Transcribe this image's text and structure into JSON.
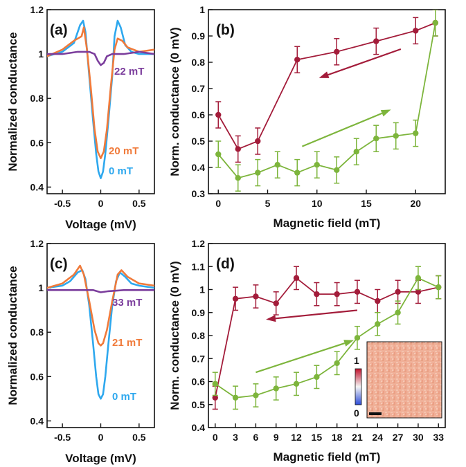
{
  "colors": {
    "blue": "#2ea8ee",
    "orange": "#f07a3a",
    "purple": "#7b3d9c",
    "dark_red": "#a31c3a",
    "green": "#7db53c",
    "axis": "#111111"
  },
  "chart_data": [
    {
      "panel": "(a)",
      "type": "line",
      "xlabel": "Voltage (mV)",
      "ylabel": "Normalized conductance",
      "xlim": [
        -0.7,
        0.7
      ],
      "ylim": [
        0.37,
        1.2
      ],
      "xticks": [
        -0.5,
        0,
        0.5
      ],
      "xtick_labels": [
        "-0.5",
        "0",
        "0.5"
      ],
      "yticks": [
        0.4,
        0.6,
        0.8,
        1,
        1.2
      ],
      "ytick_labels": [
        "0.4",
        "0.6",
        "0.8",
        "1",
        "1.2"
      ],
      "grid": false,
      "series": [
        {
          "name": "0 mT",
          "color": "#2ea8ee",
          "x": [
            -0.7,
            -0.5,
            -0.35,
            -0.27,
            -0.23,
            -0.2,
            -0.15,
            -0.1,
            -0.06,
            -0.03,
            0,
            0.03,
            0.06,
            0.1,
            0.15,
            0.18,
            0.22,
            0.26,
            0.32,
            0.4,
            0.5,
            0.7
          ],
          "y": [
            0.99,
            1.01,
            1.05,
            1.13,
            1.15,
            1.1,
            0.9,
            0.7,
            0.55,
            0.47,
            0.44,
            0.47,
            0.55,
            0.7,
            0.9,
            1.08,
            1.15,
            1.12,
            1.04,
            1.01,
            1.0,
            1.0
          ]
        },
        {
          "name": "20 mT",
          "color": "#f07a3a",
          "x": [
            -0.7,
            -0.5,
            -0.35,
            -0.25,
            -0.22,
            -0.18,
            -0.13,
            -0.08,
            -0.04,
            0,
            0.04,
            0.08,
            0.13,
            0.18,
            0.22,
            0.28,
            0.35,
            0.5,
            0.7
          ],
          "y": [
            0.99,
            1.02,
            1.06,
            1.08,
            1.12,
            1.02,
            0.85,
            0.66,
            0.56,
            0.53,
            0.56,
            0.66,
            0.85,
            1.02,
            1.07,
            1.06,
            1.03,
            1.01,
            1.02
          ]
        },
        {
          "name": "22 mT",
          "color": "#7b3d9c",
          "x": [
            -0.7,
            -0.5,
            -0.3,
            -0.15,
            -0.08,
            -0.04,
            0,
            0.04,
            0.08,
            0.15,
            0.3,
            0.5,
            0.7
          ],
          "y": [
            1.0,
            1.0,
            1.01,
            1.01,
            1.0,
            0.97,
            0.95,
            0.96,
            0.99,
            1.0,
            1.0,
            1.01,
            1.0
          ]
        }
      ],
      "annotations": [
        "22 mT",
        "20 mT",
        "0 mT"
      ]
    },
    {
      "panel": "(b)",
      "type": "line",
      "xlabel": "Magnetic field (mT)",
      "ylabel": "Norm. conductance (0 mV)",
      "xlim": [
        -1,
        23
      ],
      "ylim": [
        0.3,
        1.0
      ],
      "xticks": [
        0,
        5,
        10,
        15,
        20
      ],
      "xtick_labels": [
        "0",
        "5",
        "10",
        "15",
        "20"
      ],
      "yticks": [
        0.3,
        0.4,
        0.5,
        0.6,
        0.7,
        0.8,
        0.9,
        1.0
      ],
      "ytick_labels": [
        "0.3",
        "0.4",
        "0.5",
        "0.6",
        "0.7",
        "0.8",
        "0.9",
        "1"
      ],
      "grid": false,
      "series": [
        {
          "name": "",
          "color": "#a31c3a",
          "x": [
            0,
            2,
            4,
            8,
            12,
            16,
            20,
            22
          ],
          "y": [
            0.6,
            0.47,
            0.5,
            0.81,
            0.84,
            0.88,
            0.92,
            0.95
          ],
          "err": [
            0.05,
            0.05,
            0.05,
            0.05,
            0.05,
            0.05,
            0.05,
            0.05
          ]
        },
        {
          "name": "",
          "color": "#7db53c",
          "x": [
            0,
            2,
            4,
            6,
            8,
            10,
            12,
            14,
            16,
            18,
            20,
            22
          ],
          "y": [
            0.45,
            0.36,
            0.38,
            0.41,
            0.38,
            0.41,
            0.39,
            0.46,
            0.51,
            0.52,
            0.53,
            0.95
          ],
          "err": [
            0.05,
            0.05,
            0.05,
            0.05,
            0.05,
            0.05,
            0.05,
            0.05,
            0.05,
            0.05,
            0.05,
            0.05
          ]
        }
      ],
      "arrows": [
        {
          "color": "#a31c3a",
          "from": [
            18.5,
            0.85
          ],
          "to": [
            10.2,
            0.74
          ]
        },
        {
          "color": "#7db53c",
          "from": [
            8.5,
            0.48
          ],
          "to": [
            17.5,
            0.62
          ]
        }
      ]
    },
    {
      "panel": "(c)",
      "type": "line",
      "xlabel": "Voltage (mV)",
      "ylabel": "Normalized conductance",
      "xlim": [
        -0.7,
        0.7
      ],
      "ylim": [
        0.37,
        1.2
      ],
      "xticks": [
        -0.5,
        0,
        0.5
      ],
      "xtick_labels": [
        "-0.5",
        "0",
        "0.5"
      ],
      "yticks": [
        0.4,
        0.6,
        0.8,
        1,
        1.2
      ],
      "ytick_labels": [
        "0.4",
        "0.6",
        "0.8",
        "1",
        "1.2"
      ],
      "grid": false,
      "series": [
        {
          "name": "0 mT",
          "color": "#2ea8ee",
          "x": [
            -0.7,
            -0.5,
            -0.4,
            -0.3,
            -0.24,
            -0.2,
            -0.15,
            -0.1,
            -0.06,
            -0.03,
            0,
            0.03,
            0.06,
            0.1,
            0.15,
            0.2,
            0.25,
            0.32,
            0.4,
            0.5,
            0.7
          ],
          "y": [
            1.0,
            1.01,
            1.03,
            1.07,
            1.08,
            1.04,
            0.92,
            0.75,
            0.6,
            0.52,
            0.5,
            0.52,
            0.6,
            0.75,
            0.92,
            1.03,
            1.07,
            1.05,
            1.02,
            1.01,
            1.0
          ]
        },
        {
          "name": "21 mT",
          "color": "#f07a3a",
          "x": [
            -0.7,
            -0.5,
            -0.35,
            -0.27,
            -0.22,
            -0.15,
            -0.08,
            -0.03,
            0,
            0.03,
            0.08,
            0.15,
            0.22,
            0.27,
            0.35,
            0.5,
            0.7
          ],
          "y": [
            1.0,
            1.02,
            1.06,
            1.1,
            1.06,
            0.94,
            0.81,
            0.75,
            0.74,
            0.75,
            0.81,
            0.94,
            1.06,
            1.08,
            1.05,
            1.02,
            1.01
          ]
        },
        {
          "name": "33 mT",
          "color": "#7b3d9c",
          "x": [
            -0.7,
            -0.5,
            -0.3,
            -0.1,
            0,
            0.1,
            0.3,
            0.5,
            0.7
          ],
          "y": [
            0.99,
            0.99,
            0.99,
            0.99,
            0.98,
            0.985,
            0.99,
            0.99,
            0.99
          ]
        }
      ],
      "annotations": [
        "33 mT",
        "21 mT",
        "0 mT"
      ]
    },
    {
      "panel": "(d)",
      "type": "line",
      "xlabel": "Magnetic field (mT)",
      "ylabel": "Norm. conductance (0 mV)",
      "xlim": [
        -1,
        34
      ],
      "ylim": [
        0.4,
        1.2
      ],
      "xticks": [
        0,
        3,
        6,
        9,
        12,
        15,
        18,
        21,
        24,
        27,
        30,
        33
      ],
      "xtick_labels": [
        "0",
        "3",
        "6",
        "9",
        "12",
        "15",
        "18",
        "21",
        "24",
        "27",
        "30",
        "33"
      ],
      "yticks": [
        0.4,
        0.5,
        0.6,
        0.7,
        0.8,
        0.9,
        1.0,
        1.1,
        1.2
      ],
      "ytick_labels": [
        "0.4",
        "0.5",
        "0.6",
        "0.7",
        "0.8",
        "0.9",
        "1",
        "1.1",
        "1.2"
      ],
      "grid": false,
      "series": [
        {
          "name": "",
          "color": "#a31c3a",
          "x": [
            0,
            3,
            6,
            9,
            12,
            15,
            18,
            21,
            24,
            27,
            30,
            33
          ],
          "y": [
            0.53,
            0.96,
            0.97,
            0.94,
            1.05,
            0.98,
            0.98,
            0.99,
            0.95,
            0.99,
            0.99,
            1.01
          ],
          "err": [
            0.05,
            0.05,
            0.05,
            0.05,
            0.05,
            0.05,
            0.05,
            0.05,
            0.05,
            0.05,
            0.05,
            0.05
          ]
        },
        {
          "name": "",
          "color": "#7db53c",
          "x": [
            0,
            3,
            6,
            9,
            12,
            15,
            18,
            21,
            24,
            27,
            30,
            33
          ],
          "y": [
            0.59,
            0.53,
            0.54,
            0.57,
            0.59,
            0.62,
            0.68,
            0.79,
            0.85,
            0.9,
            1.05,
            1.01
          ],
          "err": [
            0.05,
            0.05,
            0.05,
            0.05,
            0.05,
            0.05,
            0.05,
            0.05,
            0.05,
            0.05,
            0.05,
            0.05
          ]
        }
      ],
      "arrows": [
        {
          "color": "#a31c3a",
          "from": [
            21,
            0.91
          ],
          "to": [
            7.5,
            0.87
          ]
        },
        {
          "color": "#7db53c",
          "from": [
            6,
            0.64
          ],
          "to": [
            20.5,
            0.78
          ]
        }
      ],
      "inset": {
        "type": "heatmap",
        "colorbar_ticks": [
          "1",
          "0"
        ]
      }
    }
  ]
}
